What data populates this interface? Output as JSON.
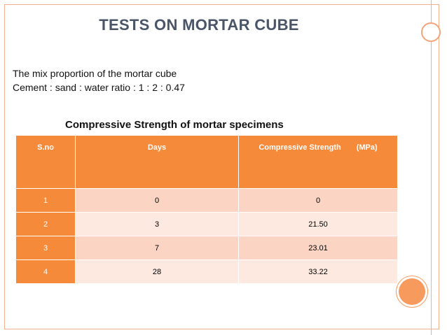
{
  "slide": {
    "title": "TESTS ON MORTAR CUBE",
    "intro_line1": "The mix proportion of the mortar cube",
    "intro_line2": "Cement : sand : water ratio : 1 : 2 : 0.47",
    "table_caption": "Compressive Strength of mortar specimens"
  },
  "table": {
    "headers": {
      "sno": "S.no",
      "days": "Days",
      "strength": "Compressive Strength",
      "strength_unit": "(MPa)"
    },
    "rows": [
      {
        "sno": "1",
        "days": "0",
        "strength": "0"
      },
      {
        "sno": "2",
        "days": "3",
        "strength": "21.50"
      },
      {
        "sno": "3",
        "days": "7",
        "strength": "23.01"
      },
      {
        "sno": "4",
        "days": "28",
        "strength": "33.22"
      }
    ]
  },
  "colors": {
    "accent": "#f58a3a",
    "row_odd": "#fbd4c4",
    "row_even": "#fde9e0",
    "title_text": "#4a5568"
  }
}
